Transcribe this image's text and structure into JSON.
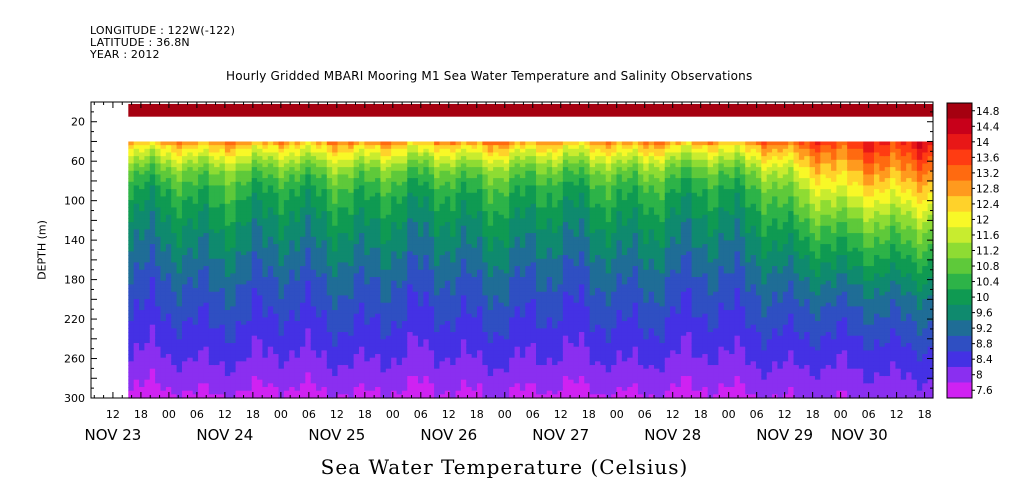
{
  "header": {
    "longitude": "LONGITUDE : 122W(-122)",
    "latitude": "LATITUDE : 36.8N",
    "year": "YEAR : 2012"
  },
  "chart_data": {
    "type": "heatmap",
    "title": "Hourly Gridded MBARI Mooring M1 Sea Water Temperature and Salinity Observations",
    "xlabel": "Sea Water Temperature (Celsius)",
    "ylabel": "DEPTH (m)",
    "x_axis": {
      "unit": "hours since NOV 22 00:00",
      "range": [
        7.3,
        187.8
      ],
      "hour_ticks": [
        {
          "x": 12,
          "label": "12"
        },
        {
          "x": 18,
          "label": "18"
        },
        {
          "x": 24,
          "label": "00"
        },
        {
          "x": 30,
          "label": "06"
        },
        {
          "x": 36,
          "label": "12"
        },
        {
          "x": 42,
          "label": "18"
        },
        {
          "x": 48,
          "label": "00"
        },
        {
          "x": 54,
          "label": "06"
        },
        {
          "x": 60,
          "label": "12"
        },
        {
          "x": 66,
          "label": "18"
        },
        {
          "x": 72,
          "label": "00"
        },
        {
          "x": 78,
          "label": "06"
        },
        {
          "x": 84,
          "label": "12"
        },
        {
          "x": 90,
          "label": "18"
        },
        {
          "x": 96,
          "label": "00"
        },
        {
          "x": 102,
          "label": "06"
        },
        {
          "x": 108,
          "label": "12"
        },
        {
          "x": 114,
          "label": "18"
        },
        {
          "x": 120,
          "label": "00"
        },
        {
          "x": 126,
          "label": "06"
        },
        {
          "x": 132,
          "label": "12"
        },
        {
          "x": 138,
          "label": "18"
        },
        {
          "x": 144,
          "label": "00"
        },
        {
          "x": 150,
          "label": "06"
        },
        {
          "x": 156,
          "label": "12"
        },
        {
          "x": 162,
          "label": "18"
        },
        {
          "x": 168,
          "label": "00"
        },
        {
          "x": 174,
          "label": "06"
        },
        {
          "x": 180,
          "label": "12"
        },
        {
          "x": 186,
          "label": "18"
        }
      ],
      "day_labels": [
        {
          "x": 12,
          "label": "NOV 23"
        },
        {
          "x": 36,
          "label": "NOV 24"
        },
        {
          "x": 60,
          "label": "NOV 25"
        },
        {
          "x": 84,
          "label": "NOV 26"
        },
        {
          "x": 108,
          "label": "NOV 27"
        },
        {
          "x": 132,
          "label": "NOV 28"
        },
        {
          "x": 156,
          "label": "NOV 29"
        },
        {
          "x": 172,
          "label": "NOV 30"
        }
      ]
    },
    "y_axis": {
      "range": [
        0,
        300
      ],
      "inverted": true,
      "ticks": [
        20,
        60,
        100,
        140,
        180,
        220,
        260,
        300
      ]
    },
    "data_start_x": 15.3,
    "gap_depth_range": [
      15,
      40
    ],
    "colorbar": {
      "levels": [
        14.8,
        14.4,
        14,
        13.6,
        13.2,
        12.8,
        12.4,
        12,
        11.6,
        11.2,
        10.8,
        10.4,
        10,
        9.6,
        9.2,
        8.8,
        8.4,
        8,
        7.6
      ],
      "labels": [
        "14.8",
        "14.4",
        "14",
        "13.6",
        "13.2",
        "12.8",
        "12.4",
        "12",
        "11.6",
        "11.2",
        "10.8",
        "10.4",
        "10",
        "9.6",
        "9.2",
        "8.8",
        "8.4",
        "8",
        "7.6"
      ],
      "colors": [
        "#a50010",
        "#c8001a",
        "#e81717",
        "#ff3c12",
        "#ff6a10",
        "#ff9a1e",
        "#ffd22a",
        "#f8f827",
        "#c8ec2f",
        "#8edc33",
        "#5ec93a",
        "#2db348",
        "#0f9a52",
        "#0f8a6e",
        "#1f6d96",
        "#2f4fc2",
        "#4431e4",
        "#8a2ff0",
        "#cf22f2"
      ]
    },
    "profile": [
      {
        "depth": 10,
        "temp": 14.9
      },
      {
        "depth": 40,
        "temp": 13.2
      },
      {
        "depth": 45,
        "temp": 12.5
      },
      {
        "depth": 55,
        "temp": 11.9
      },
      {
        "depth": 70,
        "temp": 11.1
      },
      {
        "depth": 90,
        "temp": 10.5
      },
      {
        "depth": 120,
        "temp": 10.0
      },
      {
        "depth": 150,
        "temp": 9.6
      },
      {
        "depth": 180,
        "temp": 9.2
      },
      {
        "depth": 220,
        "temp": 8.8
      },
      {
        "depth": 260,
        "temp": 8.4
      },
      {
        "depth": 300,
        "temp": 7.9
      }
    ],
    "late_warm_profile": [
      {
        "depth": 40,
        "temp": 14.0
      },
      {
        "depth": 70,
        "temp": 13.0
      },
      {
        "depth": 100,
        "temp": 12.0
      },
      {
        "depth": 130,
        "temp": 11.0
      },
      {
        "depth": 160,
        "temp": 10.3
      },
      {
        "depth": 200,
        "temp": 9.4
      },
      {
        "depth": 250,
        "temp": 8.7
      },
      {
        "depth": 300,
        "temp": 8.1
      }
    ]
  }
}
